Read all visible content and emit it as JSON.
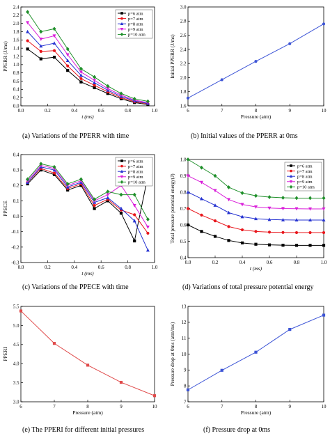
{
  "captions": [
    "(a) Variations of the PPERR with time",
    "(b) Initial values of the PPERR at 0ms",
    "(c) Variations of the PPECE with time",
    "(d) Variations of total pressure potential energy",
    "(e) The PPERI for different initial pressures",
    "(f) Pressure drop at 0ms"
  ],
  "colors": {
    "p6": "#000000",
    "p7": "#e8151b",
    "p8": "#2633d1",
    "p9": "#d91fd9",
    "p10": "#1f8f2a",
    "single_line_b": "#3c54d6",
    "single_line_e": "#e04a4a",
    "single_line_f": "#3c54d6"
  },
  "chart_data": [
    {
      "id": "a",
      "type": "line",
      "xlabel": "t (ms)",
      "ylabel": "PPERR (J/ms)",
      "xlim": [
        0.0,
        1.0
      ],
      "ylim": [
        0.0,
        2.4
      ],
      "xticks": [
        0.0,
        0.2,
        0.4,
        0.6,
        0.8,
        1.0
      ],
      "yticks": [
        0.0,
        0.2,
        0.4,
        0.6,
        0.8,
        1.0,
        1.2,
        1.4,
        1.6,
        1.8,
        2.0,
        2.2,
        2.4
      ],
      "legend": "top-right",
      "x": [
        0.05,
        0.15,
        0.25,
        0.35,
        0.45,
        0.55,
        0.65,
        0.75,
        0.85,
        0.95
      ],
      "series": [
        {
          "name": "p=6 atm",
          "marker": "square",
          "color": "#000000",
          "values": [
            1.38,
            1.14,
            1.18,
            0.86,
            0.58,
            0.44,
            0.3,
            0.17,
            0.08,
            0.03
          ]
        },
        {
          "name": "p=7 atm",
          "marker": "circle",
          "color": "#e8151b",
          "values": [
            1.58,
            1.32,
            1.34,
            0.97,
            0.66,
            0.5,
            0.34,
            0.2,
            0.1,
            0.05
          ]
        },
        {
          "name": "p=8 atm",
          "marker": "triangle-up",
          "color": "#2633d1",
          "values": [
            1.8,
            1.45,
            1.52,
            1.1,
            0.74,
            0.56,
            0.38,
            0.23,
            0.12,
            0.06
          ]
        },
        {
          "name": "p=9 atm",
          "marker": "triangle-down",
          "color": "#d91fd9",
          "values": [
            2.02,
            1.62,
            1.7,
            1.24,
            0.82,
            0.62,
            0.42,
            0.26,
            0.14,
            0.08
          ]
        },
        {
          "name": "p=10 atm",
          "marker": "diamond",
          "color": "#1f8f2a",
          "values": [
            2.28,
            1.8,
            1.87,
            1.38,
            0.9,
            0.7,
            0.48,
            0.3,
            0.17,
            0.11
          ]
        }
      ]
    },
    {
      "id": "b",
      "type": "line",
      "xlabel": "Pressure (atm)",
      "ylabel": "Initial PPERR (J/ms)",
      "xlim": [
        6,
        10
      ],
      "ylim": [
        1.6,
        3.0
      ],
      "xticks": [
        6,
        7,
        8,
        9,
        10
      ],
      "yticks": [
        1.6,
        1.8,
        2.0,
        2.2,
        2.4,
        2.6,
        2.8,
        3.0
      ],
      "x": [
        6,
        7,
        8,
        9,
        10
      ],
      "series": [
        {
          "marker": "circle",
          "color": "#3c54d6",
          "values": [
            1.71,
            1.97,
            2.23,
            2.48,
            2.76
          ]
        }
      ]
    },
    {
      "id": "c",
      "type": "line",
      "xlabel": "t (ms)",
      "ylabel": "PPECE",
      "xlim": [
        0.0,
        1.0
      ],
      "ylim": [
        -0.3,
        0.4
      ],
      "xticks": [
        0.0,
        0.2,
        0.4,
        0.6,
        0.8,
        1.0
      ],
      "yticks": [
        -0.3,
        -0.2,
        -0.1,
        0.0,
        0.1,
        0.2,
        0.3,
        0.4
      ],
      "legend": "top-right",
      "x": [
        0.05,
        0.15,
        0.25,
        0.35,
        0.45,
        0.55,
        0.65,
        0.75,
        0.85,
        0.95
      ],
      "series": [
        {
          "name": "p=6 atm",
          "marker": "square",
          "color": "#000000",
          "values": [
            0.21,
            0.3,
            0.27,
            0.17,
            0.2,
            0.05,
            0.1,
            0.02,
            -0.16,
            0.26
          ]
        },
        {
          "name": "p=7 atm",
          "marker": "circle",
          "color": "#e8151b",
          "values": [
            0.22,
            0.31,
            0.28,
            0.18,
            0.21,
            0.07,
            0.11,
            0.04,
            0.01,
            -0.11
          ]
        },
        {
          "name": "p=8 atm",
          "marker": "triangle-up",
          "color": "#2633d1",
          "values": [
            0.22,
            0.32,
            0.3,
            0.19,
            0.22,
            0.09,
            0.12,
            0.05,
            -0.03,
            -0.22
          ]
        },
        {
          "name": "p=9 atm",
          "marker": "triangle-down",
          "color": "#d91fd9",
          "values": [
            0.23,
            0.33,
            0.31,
            0.2,
            0.23,
            0.1,
            0.14,
            0.2,
            0.07,
            -0.07
          ]
        },
        {
          "name": "p=10 atm",
          "marker": "diamond",
          "color": "#1f8f2a",
          "values": [
            0.24,
            0.34,
            0.32,
            0.21,
            0.24,
            0.11,
            0.16,
            0.14,
            0.14,
            -0.02
          ]
        }
      ]
    },
    {
      "id": "d",
      "type": "line",
      "xlabel": "t (ms)",
      "ylabel": "Total pressure potential energy(J)",
      "xlim": [
        0.0,
        1.0
      ],
      "ylim": [
        0.4,
        1.0
      ],
      "xticks": [
        0.0,
        0.2,
        0.4,
        0.6,
        0.8,
        1.0
      ],
      "yticks": [
        0.4,
        0.5,
        0.6,
        0.7,
        0.8,
        0.9,
        1.0
      ],
      "legend": "top-right",
      "x": [
        0.0,
        0.1,
        0.2,
        0.3,
        0.4,
        0.5,
        0.6,
        0.7,
        0.8,
        0.9,
        1.0
      ],
      "series": [
        {
          "name": "p=6 atm",
          "marker": "square",
          "color": "#000000",
          "values": [
            0.6,
            0.56,
            0.53,
            0.505,
            0.49,
            0.482,
            0.478,
            0.476,
            0.475,
            0.475,
            0.475
          ]
        },
        {
          "name": "p=7 atm",
          "marker": "circle",
          "color": "#e8151b",
          "values": [
            0.7,
            0.66,
            0.625,
            0.59,
            0.57,
            0.56,
            0.556,
            0.554,
            0.553,
            0.553,
            0.553
          ]
        },
        {
          "name": "p=8 atm",
          "marker": "triangle-up",
          "color": "#2633d1",
          "values": [
            0.8,
            0.76,
            0.72,
            0.675,
            0.65,
            0.638,
            0.633,
            0.631,
            0.63,
            0.63,
            0.63
          ]
        },
        {
          "name": "p=9 atm",
          "marker": "triangle-down",
          "color": "#d91fd9",
          "values": [
            0.9,
            0.86,
            0.81,
            0.755,
            0.725,
            0.71,
            0.703,
            0.7,
            0.699,
            0.698,
            0.698
          ]
        },
        {
          "name": "p=10 atm",
          "marker": "diamond",
          "color": "#1f8f2a",
          "values": [
            1.0,
            0.95,
            0.9,
            0.83,
            0.795,
            0.778,
            0.77,
            0.766,
            0.764,
            0.764,
            0.764
          ]
        }
      ]
    },
    {
      "id": "e",
      "type": "line",
      "xlabel": "Pressure (atm)",
      "ylabel": "PPERI",
      "xlim": [
        6,
        10
      ],
      "ylim": [
        3.0,
        5.5
      ],
      "xticks": [
        6,
        7,
        8,
        9,
        10
      ],
      "yticks": [
        3.0,
        3.5,
        4.0,
        4.5,
        5.0,
        5.5
      ],
      "x": [
        6,
        7,
        8,
        9,
        10
      ],
      "series": [
        {
          "marker": "square",
          "color": "#e04a4a",
          "values": [
            5.38,
            4.53,
            3.96,
            3.51,
            3.16
          ]
        }
      ]
    },
    {
      "id": "f",
      "type": "line",
      "xlabel": "Pressure (atm)",
      "ylabel": "Pressure drop at 0ms (atm/ms)",
      "xlim": [
        6,
        10
      ],
      "ylim": [
        7,
        13
      ],
      "xticks": [
        6,
        7,
        8,
        9,
        10
      ],
      "yticks": [
        7,
        8,
        9,
        10,
        11,
        12,
        13
      ],
      "x": [
        6,
        7,
        8,
        9,
        10
      ],
      "series": [
        {
          "marker": "square",
          "color": "#3c54d6",
          "values": [
            7.75,
            8.98,
            10.12,
            11.55,
            12.45
          ]
        }
      ]
    }
  ]
}
